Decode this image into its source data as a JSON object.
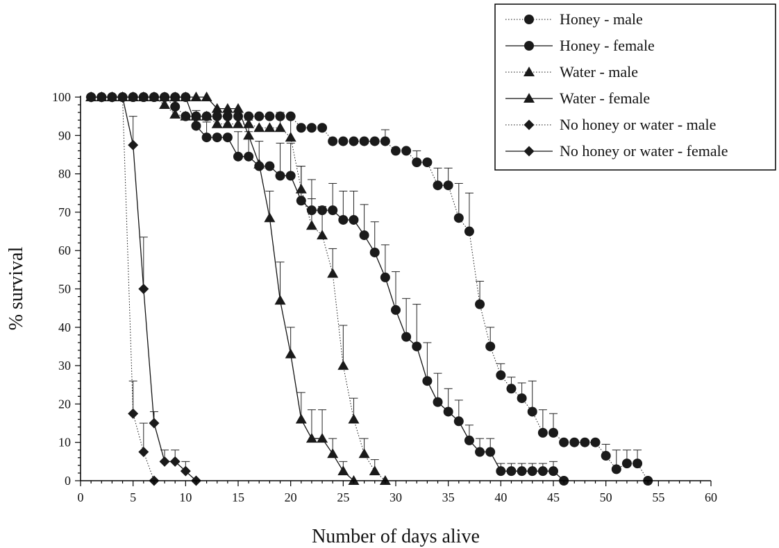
{
  "chart_data": {
    "type": "line",
    "xlabel": "Number of days alive",
    "ylabel": "% survival",
    "xlim": [
      0,
      60
    ],
    "ylim": [
      0,
      100
    ],
    "x_ticks": [
      0,
      5,
      10,
      15,
      20,
      25,
      30,
      35,
      40,
      45,
      50,
      55,
      60
    ],
    "y_ticks": [
      0,
      10,
      20,
      30,
      40,
      50,
      60,
      70,
      80,
      90,
      100
    ],
    "grid": false,
    "legend_position": "top-right",
    "series": [
      {
        "name": "Honey - male",
        "marker": "circle",
        "line": "dotted",
        "points": [
          [
            1,
            100
          ],
          [
            2,
            100
          ],
          [
            3,
            100
          ],
          [
            4,
            100
          ],
          [
            5,
            100
          ],
          [
            6,
            100
          ],
          [
            7,
            100
          ],
          [
            8,
            100
          ],
          [
            9,
            97.5
          ],
          [
            10,
            95
          ],
          [
            11,
            95
          ],
          [
            12,
            95
          ],
          [
            13,
            95
          ],
          [
            14,
            95
          ],
          [
            15,
            95
          ],
          [
            16,
            95
          ],
          [
            17,
            95
          ],
          [
            18,
            95
          ],
          [
            19,
            95
          ],
          [
            20,
            95
          ],
          [
            21,
            92
          ],
          [
            22,
            92
          ],
          [
            23,
            92
          ],
          [
            24,
            88.5
          ],
          [
            25,
            88.5
          ],
          [
            26,
            88.5
          ],
          [
            27,
            88.5
          ],
          [
            28,
            88.5
          ],
          [
            29,
            88.5
          ],
          [
            30,
            86
          ],
          [
            31,
            86
          ],
          [
            32,
            83
          ],
          [
            33,
            83
          ],
          [
            34,
            77
          ],
          [
            35,
            77
          ],
          [
            36,
            68.5
          ],
          [
            37,
            65
          ],
          [
            38,
            46
          ],
          [
            39,
            35
          ],
          [
            40,
            27.5
          ],
          [
            41,
            24
          ],
          [
            42,
            21.5
          ],
          [
            43,
            18
          ],
          [
            44,
            12.5
          ],
          [
            45,
            12.5
          ],
          [
            46,
            10
          ],
          [
            47,
            10
          ],
          [
            48,
            10
          ],
          [
            49,
            10
          ],
          [
            50,
            6.5
          ],
          [
            51,
            3
          ],
          [
            52,
            4.5
          ],
          [
            53,
            4.5
          ],
          [
            54,
            0
          ]
        ],
        "errors": [
          [
            29,
            3
          ],
          [
            32,
            3
          ],
          [
            34,
            4.5
          ],
          [
            35,
            4.5
          ],
          [
            36,
            9
          ],
          [
            37,
            10
          ],
          [
            38,
            6
          ],
          [
            39,
            5
          ],
          [
            40,
            3
          ],
          [
            41,
            3
          ],
          [
            42,
            4
          ],
          [
            43,
            8
          ],
          [
            44,
            6
          ],
          [
            45,
            5
          ],
          [
            50,
            3
          ],
          [
            51,
            5
          ],
          [
            52,
            3.5
          ],
          [
            53,
            3.5
          ]
        ]
      },
      {
        "name": "Honey - female",
        "marker": "circle",
        "line": "solid",
        "points": [
          [
            1,
            100
          ],
          [
            2,
            100
          ],
          [
            3,
            100
          ],
          [
            4,
            100
          ],
          [
            5,
            100
          ],
          [
            6,
            100
          ],
          [
            7,
            100
          ],
          [
            8,
            100
          ],
          [
            9,
            100
          ],
          [
            10,
            100
          ],
          [
            11,
            92.5
          ],
          [
            12,
            89.5
          ],
          [
            13,
            89.5
          ],
          [
            14,
            89.5
          ],
          [
            15,
            84.5
          ],
          [
            16,
            84.5
          ],
          [
            17,
            82
          ],
          [
            18,
            82
          ],
          [
            19,
            79.5
          ],
          [
            20,
            79.5
          ],
          [
            21,
            73
          ],
          [
            22,
            70.5
          ],
          [
            23,
            70.5
          ],
          [
            24,
            70.5
          ],
          [
            25,
            68
          ],
          [
            26,
            68
          ],
          [
            27,
            64
          ],
          [
            28,
            59.5
          ],
          [
            29,
            53
          ],
          [
            30,
            44.5
          ],
          [
            31,
            37.5
          ],
          [
            32,
            35
          ],
          [
            33,
            26
          ],
          [
            34,
            20.5
          ],
          [
            35,
            18
          ],
          [
            36,
            15.5
          ],
          [
            37,
            10.5
          ],
          [
            38,
            7.5
          ],
          [
            39,
            7.5
          ],
          [
            40,
            2.5
          ],
          [
            41,
            2.5
          ],
          [
            42,
            2.5
          ],
          [
            43,
            2.5
          ],
          [
            44,
            2.5
          ],
          [
            45,
            2.5
          ],
          [
            46,
            0
          ]
        ],
        "errors": [
          [
            11,
            4
          ],
          [
            12,
            4
          ],
          [
            15,
            6.5
          ],
          [
            16,
            6.5
          ],
          [
            19,
            8.5
          ],
          [
            20,
            8.5
          ],
          [
            21,
            9
          ],
          [
            22,
            8
          ],
          [
            24,
            7
          ],
          [
            25,
            7.5
          ],
          [
            26,
            7.5
          ],
          [
            27,
            8
          ],
          [
            28,
            8
          ],
          [
            29,
            8.5
          ],
          [
            30,
            10
          ],
          [
            31,
            10
          ],
          [
            32,
            11
          ],
          [
            33,
            10
          ],
          [
            34,
            7.5
          ],
          [
            35,
            6
          ],
          [
            36,
            5.5
          ],
          [
            37,
            4
          ],
          [
            38,
            3.5
          ],
          [
            39,
            3.5
          ],
          [
            40,
            2
          ],
          [
            41,
            2
          ],
          [
            42,
            2
          ],
          [
            43,
            2
          ],
          [
            44,
            2
          ],
          [
            45,
            2.5
          ]
        ]
      },
      {
        "name": "Water - male",
        "marker": "triangle",
        "line": "dotted",
        "points": [
          [
            1,
            100
          ],
          [
            2,
            100
          ],
          [
            3,
            100
          ],
          [
            4,
            100
          ],
          [
            5,
            100
          ],
          [
            6,
            100
          ],
          [
            7,
            100
          ],
          [
            8,
            98
          ],
          [
            9,
            95.5
          ],
          [
            10,
            95
          ],
          [
            11,
            95
          ],
          [
            12,
            95
          ],
          [
            13,
            93
          ],
          [
            14,
            93
          ],
          [
            15,
            93
          ],
          [
            16,
            93
          ],
          [
            17,
            92
          ],
          [
            18,
            92
          ],
          [
            19,
            92
          ],
          [
            20,
            89.5
          ],
          [
            21,
            76
          ],
          [
            22,
            66.5
          ],
          [
            23,
            64
          ],
          [
            24,
            54
          ],
          [
            25,
            30
          ],
          [
            26,
            16
          ],
          [
            27,
            7
          ],
          [
            28,
            2.5
          ],
          [
            29,
            0
          ]
        ],
        "errors": [
          [
            19,
            4
          ],
          [
            20,
            5
          ],
          [
            21,
            6
          ],
          [
            22,
            7
          ],
          [
            23,
            7.5
          ],
          [
            24,
            6.5
          ],
          [
            25,
            10.5
          ],
          [
            26,
            5.5
          ],
          [
            27,
            4
          ],
          [
            28,
            3
          ]
        ]
      },
      {
        "name": "Water - female",
        "marker": "triangle",
        "line": "solid",
        "points": [
          [
            1,
            100
          ],
          [
            2,
            100
          ],
          [
            3,
            100
          ],
          [
            4,
            100
          ],
          [
            5,
            100
          ],
          [
            6,
            100
          ],
          [
            7,
            100
          ],
          [
            8,
            100
          ],
          [
            9,
            100
          ],
          [
            10,
            100
          ],
          [
            11,
            100
          ],
          [
            12,
            100
          ],
          [
            13,
            97
          ],
          [
            14,
            97
          ],
          [
            15,
            97
          ],
          [
            16,
            90
          ],
          [
            17,
            82.5
          ],
          [
            18,
            68.5
          ],
          [
            19,
            47
          ],
          [
            20,
            33
          ],
          [
            21,
            16
          ],
          [
            22,
            11
          ],
          [
            23,
            11
          ],
          [
            24,
            7
          ],
          [
            25,
            2.5
          ],
          [
            26,
            0
          ]
        ],
        "errors": [
          [
            16,
            4
          ],
          [
            17,
            6
          ],
          [
            18,
            7
          ],
          [
            19,
            10
          ],
          [
            20,
            7
          ],
          [
            21,
            7
          ],
          [
            22,
            7.5
          ],
          [
            23,
            7.5
          ],
          [
            24,
            4
          ],
          [
            25,
            2.5
          ]
        ]
      },
      {
        "name": "No honey or water - male",
        "marker": "diamond",
        "line": "dotted",
        "points": [
          [
            1,
            100
          ],
          [
            2,
            100
          ],
          [
            3,
            100
          ],
          [
            4,
            100
          ],
          [
            5,
            17.5
          ],
          [
            6,
            7.5
          ],
          [
            7,
            0
          ]
        ],
        "errors": [
          [
            5,
            8.5
          ],
          [
            6,
            7.5
          ]
        ]
      },
      {
        "name": "No honey or water - female",
        "marker": "diamond",
        "line": "solid",
        "points": [
          [
            1,
            100
          ],
          [
            2,
            100
          ],
          [
            3,
            100
          ],
          [
            4,
            100
          ],
          [
            5,
            87.5
          ],
          [
            6,
            50
          ],
          [
            7,
            15
          ],
          [
            8,
            5
          ],
          [
            9,
            5
          ],
          [
            10,
            2.5
          ],
          [
            11,
            0
          ]
        ],
        "errors": [
          [
            5,
            7.5
          ],
          [
            6,
            13.5
          ],
          [
            7,
            3
          ],
          [
            8,
            3
          ],
          [
            9,
            3
          ],
          [
            10,
            2.5
          ]
        ]
      }
    ]
  }
}
